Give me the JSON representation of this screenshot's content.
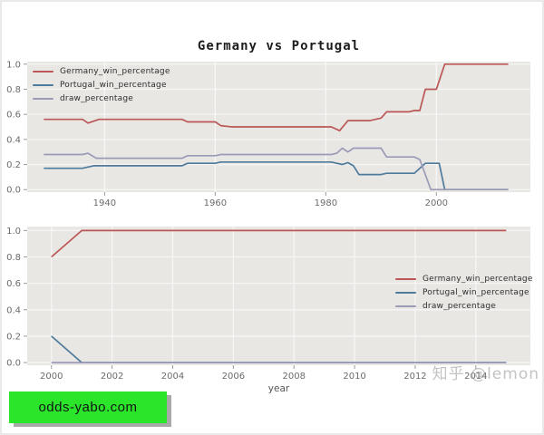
{
  "figure": {
    "title": "Germany vs Portugal"
  },
  "watermark": {
    "text": "知乎 @lemon"
  },
  "badge": {
    "text": "odds-yabo.com",
    "bg_color": "#2be52b",
    "shadow_color": "#a9a9a9"
  },
  "colors": {
    "germany_line": "#bb5756",
    "portugal_line": "#4e7a9b",
    "draw_line": "#9b9bb8",
    "panel_background": "#e8e7e4",
    "gridline": "#f7f6f4",
    "tick_text": "#6b6b6b"
  },
  "chart_data": [
    {
      "type": "line",
      "title": "Germany vs Portugal",
      "xlabel": "",
      "ylabel": "",
      "xlim": [
        1926,
        2017
      ],
      "ylim": [
        -0.02,
        1.02
      ],
      "xticks": [
        1940,
        1960,
        1980,
        2000
      ],
      "yticks": [
        0.0,
        0.2,
        0.4,
        0.6,
        0.8,
        1.0
      ],
      "grid": true,
      "legend_position": "upper left",
      "series": [
        {
          "name": "Germany_win_percentage",
          "color": "#bb5756",
          "points": [
            [
              1929,
              0.56
            ],
            [
              1936,
              0.56
            ],
            [
              1937,
              0.53
            ],
            [
              1939,
              0.56
            ],
            [
              1954,
              0.56
            ],
            [
              1955,
              0.54
            ],
            [
              1960,
              0.54
            ],
            [
              1961,
              0.51
            ],
            [
              1963,
              0.5
            ],
            [
              1981,
              0.5
            ],
            [
              1982.5,
              0.47
            ],
            [
              1984,
              0.55
            ],
            [
              1988,
              0.55
            ],
            [
              1989,
              0.56
            ],
            [
              1990,
              0.57
            ],
            [
              1991,
              0.62
            ],
            [
              1995,
              0.62
            ],
            [
              1996,
              0.63
            ],
            [
              1997,
              0.63
            ],
            [
              1998,
              0.8
            ],
            [
              2000,
              0.8
            ],
            [
              2001.5,
              1.0
            ],
            [
              2013,
              1.0
            ]
          ]
        },
        {
          "name": "Portugal_win_percentage",
          "color": "#4e7a9b",
          "points": [
            [
              1929,
              0.17
            ],
            [
              1936,
              0.17
            ],
            [
              1938,
              0.19
            ],
            [
              1954,
              0.19
            ],
            [
              1955,
              0.21
            ],
            [
              1960,
              0.21
            ],
            [
              1961,
              0.22
            ],
            [
              1981,
              0.22
            ],
            [
              1982,
              0.21
            ],
            [
              1983,
              0.2
            ],
            [
              1984,
              0.215
            ],
            [
              1985,
              0.19
            ],
            [
              1986,
              0.12
            ],
            [
              1990,
              0.12
            ],
            [
              1991,
              0.13
            ],
            [
              1996,
              0.13
            ],
            [
              1998,
              0.21
            ],
            [
              2000.5,
              0.21
            ],
            [
              2001.5,
              0.0
            ],
            [
              2013,
              0.0
            ]
          ]
        },
        {
          "name": "draw_percentage",
          "color": "#9b9bb8",
          "points": [
            [
              1929,
              0.28
            ],
            [
              1936,
              0.28
            ],
            [
              1937,
              0.29
            ],
            [
              1938.5,
              0.25
            ],
            [
              1954,
              0.25
            ],
            [
              1955,
              0.27
            ],
            [
              1960,
              0.27
            ],
            [
              1961,
              0.28
            ],
            [
              1981,
              0.28
            ],
            [
              1982,
              0.29
            ],
            [
              1983,
              0.33
            ],
            [
              1984,
              0.3
            ],
            [
              1985,
              0.33
            ],
            [
              1990,
              0.33
            ],
            [
              1991,
              0.26
            ],
            [
              1996,
              0.26
            ],
            [
              1997,
              0.24
            ],
            [
              1999,
              0.0
            ],
            [
              2013,
              0.0
            ]
          ]
        }
      ]
    },
    {
      "type": "line",
      "title": "",
      "xlabel": "year",
      "ylabel": "",
      "xlim": [
        1999.2,
        2015.8
      ],
      "ylim": [
        -0.02,
        1.03
      ],
      "xticks": [
        2000,
        2002,
        2004,
        2006,
        2008,
        2010,
        2012,
        2014
      ],
      "yticks": [
        0.0,
        0.2,
        0.4,
        0.6,
        0.8,
        1.0
      ],
      "grid": true,
      "legend_position": "center right",
      "series": [
        {
          "name": "Germany_win_percentage",
          "color": "#bb5756",
          "points": [
            [
              2000,
              0.8
            ],
            [
              2001,
              1.0
            ],
            [
              2015,
              1.0
            ]
          ]
        },
        {
          "name": "Portugal_win_percentage",
          "color": "#4e7a9b",
          "points": [
            [
              2000,
              0.2
            ],
            [
              2001,
              0.0
            ],
            [
              2015,
              0.0
            ]
          ]
        },
        {
          "name": "draw_percentage",
          "color": "#9b9bb8",
          "points": [
            [
              2000,
              0.0
            ],
            [
              2015,
              0.0
            ]
          ]
        }
      ]
    }
  ]
}
